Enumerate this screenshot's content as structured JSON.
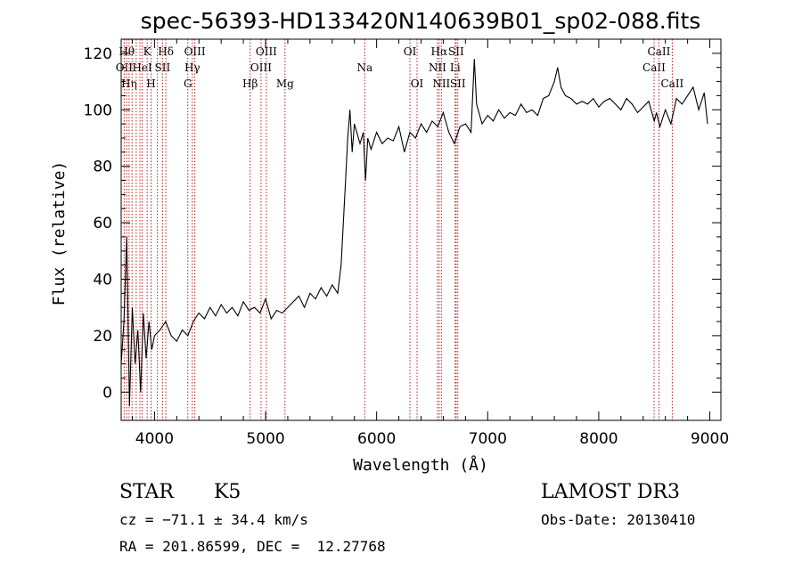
{
  "chart_data": {
    "type": "line",
    "title": "spec-56393-HD133420N140639B01_sp02-088.fits",
    "xlabel": "Wavelength (Å)",
    "ylabel": "Flux (relative)",
    "xlim": [
      3700,
      9100
    ],
    "ylim": [
      -10,
      125
    ],
    "xticks": [
      4000,
      5000,
      6000,
      7000,
      8000,
      9000
    ],
    "yticks": [
      0,
      20,
      40,
      60,
      80,
      100,
      120
    ],
    "line_color": "#000000",
    "marker_color": "#b22222",
    "series": [
      {
        "x": [
          3700,
          3725,
          3750,
          3775,
          3800,
          3825,
          3850,
          3875,
          3900,
          3925,
          3950,
          3975,
          4000,
          4050,
          4100,
          4150,
          4200,
          4250,
          4300,
          4350,
          4400,
          4450,
          4500,
          4550,
          4600,
          4650,
          4700,
          4750,
          4800,
          4850,
          4900,
          4950,
          5000,
          5050,
          5100,
          5150,
          5200,
          5250,
          5300,
          5350,
          5400,
          5450,
          5500,
          5550,
          5600,
          5650,
          5680,
          5700,
          5720,
          5740,
          5760,
          5780,
          5800,
          5850,
          5880,
          5900,
          5920,
          5950,
          6000,
          6050,
          6100,
          6150,
          6200,
          6250,
          6300,
          6350,
          6400,
          6450,
          6500,
          6550,
          6600,
          6650,
          6700,
          6750,
          6800,
          6850,
          6880,
          6900,
          6950,
          7000,
          7050,
          7100,
          7150,
          7200,
          7250,
          7300,
          7350,
          7400,
          7450,
          7500,
          7550,
          7600,
          7630,
          7660,
          7700,
          7750,
          7800,
          7850,
          7900,
          7950,
          8000,
          8050,
          8100,
          8150,
          8200,
          8250,
          8300,
          8350,
          8400,
          8450,
          8500,
          8520,
          8550,
          8600,
          8650,
          8700,
          8750,
          8800,
          8850,
          8900,
          8950,
          8980
        ],
        "y": [
          10,
          25,
          55,
          -5,
          30,
          10,
          22,
          0,
          28,
          12,
          25,
          15,
          20,
          22,
          25,
          20,
          18,
          22,
          20,
          25,
          28,
          26,
          30,
          27,
          31,
          28,
          30,
          27,
          32,
          29,
          30,
          28,
          33,
          26,
          29,
          28,
          30,
          32,
          34,
          30,
          35,
          33,
          37,
          34,
          38,
          35,
          45,
          60,
          75,
          90,
          100,
          85,
          95,
          88,
          92,
          75,
          90,
          86,
          92,
          88,
          90,
          89,
          94,
          85,
          92,
          90,
          95,
          92,
          96,
          94,
          99,
          92,
          88,
          94,
          95,
          92,
          118,
          102,
          95,
          98,
          96,
          100,
          97,
          99,
          98,
          102,
          99,
          100,
          98,
          104,
          105,
          110,
          115,
          108,
          105,
          104,
          102,
          103,
          102,
          104,
          101,
          103,
          104,
          102,
          100,
          104,
          102,
          99,
          101,
          103,
          96,
          99,
          94,
          100,
          95,
          104,
          102,
          105,
          108,
          100,
          106,
          95
        ]
      }
    ],
    "line_markers": [
      {
        "x": 3727,
        "label": "OII",
        "row": 1
      },
      {
        "x": 3750,
        "label": "Hθ",
        "row": 0
      },
      {
        "x": 3771,
        "label": "Hη",
        "row": 2
      },
      {
        "x": 3798,
        "label": "",
        "row": -1
      },
      {
        "x": 3835,
        "label": "",
        "row": -1
      },
      {
        "x": 3869,
        "label": "",
        "row": -1
      },
      {
        "x": 3889,
        "label": "HeI",
        "row": 1
      },
      {
        "x": 3934,
        "label": "K",
        "row": 0
      },
      {
        "x": 3969,
        "label": "H",
        "row": 2
      },
      {
        "x": 4026,
        "label": "",
        "row": -1
      },
      {
        "x": 4072,
        "label": "SII",
        "row": 1
      },
      {
        "x": 4102,
        "label": "Hδ",
        "row": 0
      },
      {
        "x": 4300,
        "label": "G",
        "row": 2
      },
      {
        "x": 4340,
        "label": "Hγ",
        "row": 1
      },
      {
        "x": 4363,
        "label": "OIII",
        "row": 0
      },
      {
        "x": 4861,
        "label": "Hβ",
        "row": 2
      },
      {
        "x": 4959,
        "label": "OIII",
        "row": 1
      },
      {
        "x": 5007,
        "label": "OIII",
        "row": 0
      },
      {
        "x": 5175,
        "label": "Mg",
        "row": 2
      },
      {
        "x": 5893,
        "label": "Na",
        "row": 1
      },
      {
        "x": 6300,
        "label": "OI",
        "row": 0
      },
      {
        "x": 6364,
        "label": "OI",
        "row": 2
      },
      {
        "x": 6548,
        "label": "NII",
        "row": 1
      },
      {
        "x": 6563,
        "label": "Hα",
        "row": 0
      },
      {
        "x": 6583,
        "label": "NII",
        "row": 2
      },
      {
        "x": 6707,
        "label": "Li",
        "row": 1
      },
      {
        "x": 6716,
        "label": "SII",
        "row": 0
      },
      {
        "x": 6731,
        "label": "SII",
        "row": 2
      },
      {
        "x": 8498,
        "label": "CaII",
        "row": 1
      },
      {
        "x": 8542,
        "label": "CaII",
        "row": 0
      },
      {
        "x": 8662,
        "label": "CaII",
        "row": 2
      }
    ]
  },
  "info": {
    "object_class": "STAR",
    "subclass": "K5",
    "survey": "LAMOST DR3",
    "cz": "cz = −71.1 ± 34.4 km/s",
    "obs_date": "Obs-Date: 20130410",
    "coords": "RA = 201.86599, DEC =  12.27768"
  }
}
